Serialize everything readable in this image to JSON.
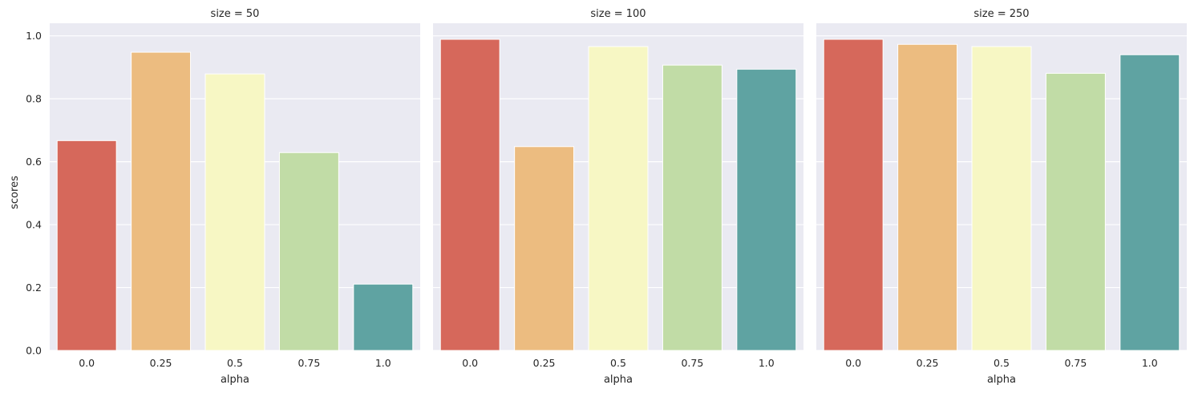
{
  "chart_data": {
    "type": "bar",
    "layout": "facet-grid",
    "ylabel": "scores",
    "xlabel": "alpha",
    "ylim": [
      0,
      1.04
    ],
    "yticks": [
      "0.0",
      "0.2",
      "0.4",
      "0.6",
      "0.8",
      "1.0"
    ],
    "grid": true,
    "categories": [
      "0.0",
      "0.25",
      "0.5",
      "0.75",
      "1.0"
    ],
    "colors": [
      "#d6685b",
      "#ecbc80",
      "#f7f7c4",
      "#c1dca6",
      "#5fa3a2"
    ],
    "facets": [
      {
        "title": "size = 50",
        "values": [
          0.667,
          0.948,
          0.879,
          0.629,
          0.211
        ]
      },
      {
        "title": "size = 100",
        "values": [
          0.989,
          0.648,
          0.966,
          0.907,
          0.894
        ]
      },
      {
        "title": "size = 250",
        "values": [
          0.989,
          0.973,
          0.966,
          0.881,
          0.94
        ]
      }
    ]
  }
}
